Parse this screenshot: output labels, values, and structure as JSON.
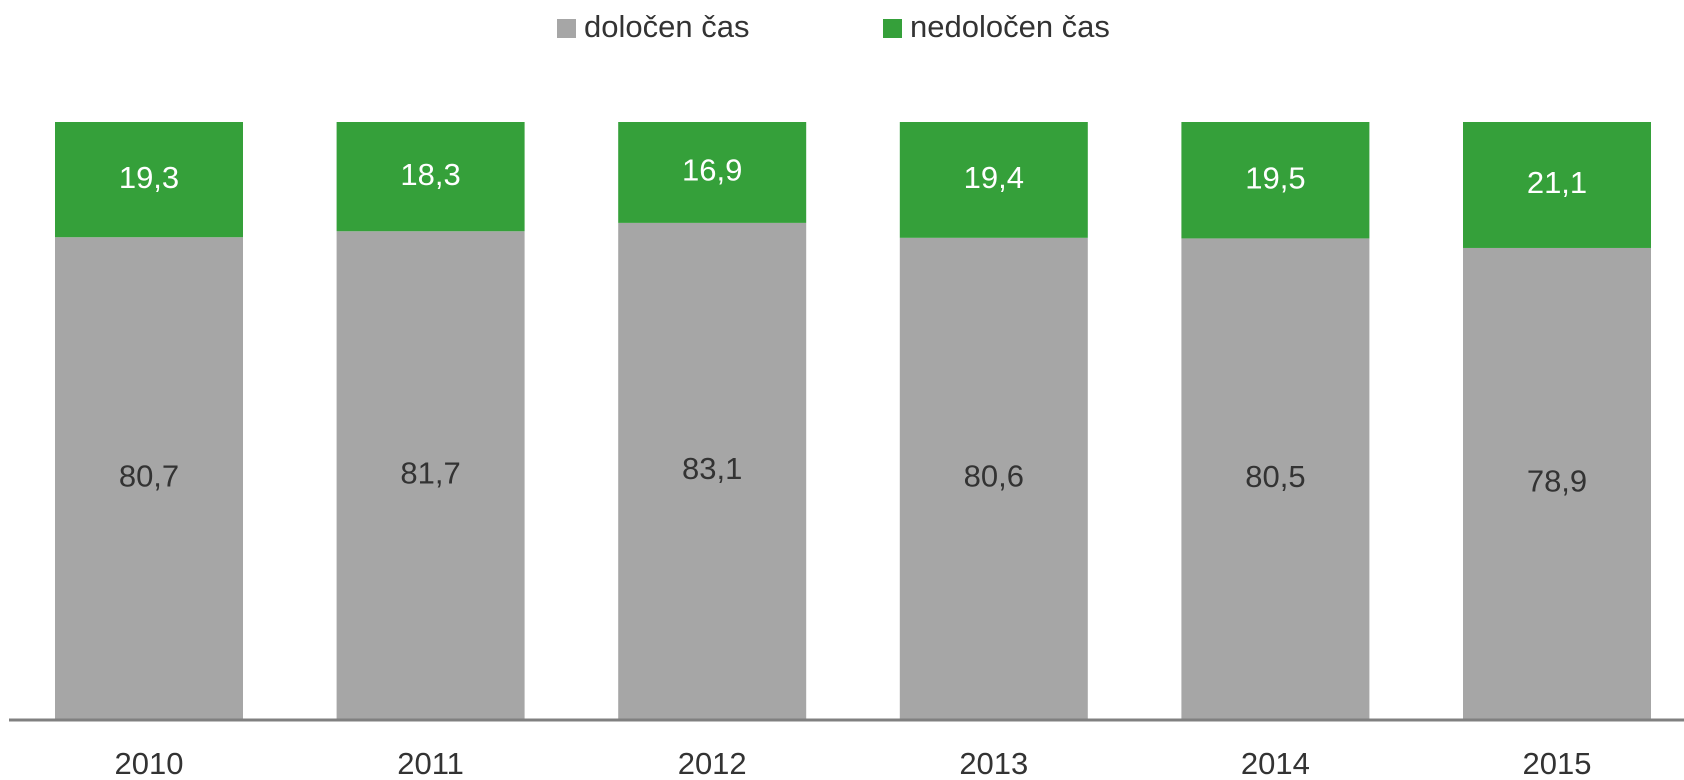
{
  "chart_data": {
    "type": "stacked_bar",
    "categories": [
      "2010",
      "2011",
      "2012",
      "2013",
      "2014",
      "2015"
    ],
    "series": [
      {
        "name": "določen čas",
        "color": "#a6a6a6",
        "label_color": "#333333",
        "values": [
          80.7,
          81.7,
          83.1,
          80.6,
          80.5,
          78.9
        ],
        "value_labels": [
          "80,7",
          "81,7",
          "83,1",
          "80,6",
          "80,5",
          "78,9"
        ]
      },
      {
        "name": "nedoločen čas",
        "color": "#35a03a",
        "label_color": "#ffffff",
        "values": [
          19.3,
          18.3,
          16.9,
          19.4,
          19.5,
          21.1
        ],
        "value_labels": [
          "19,3",
          "18,3",
          "16,9",
          "19,4",
          "19,5",
          "21,1"
        ]
      }
    ],
    "legend": "top"
  }
}
